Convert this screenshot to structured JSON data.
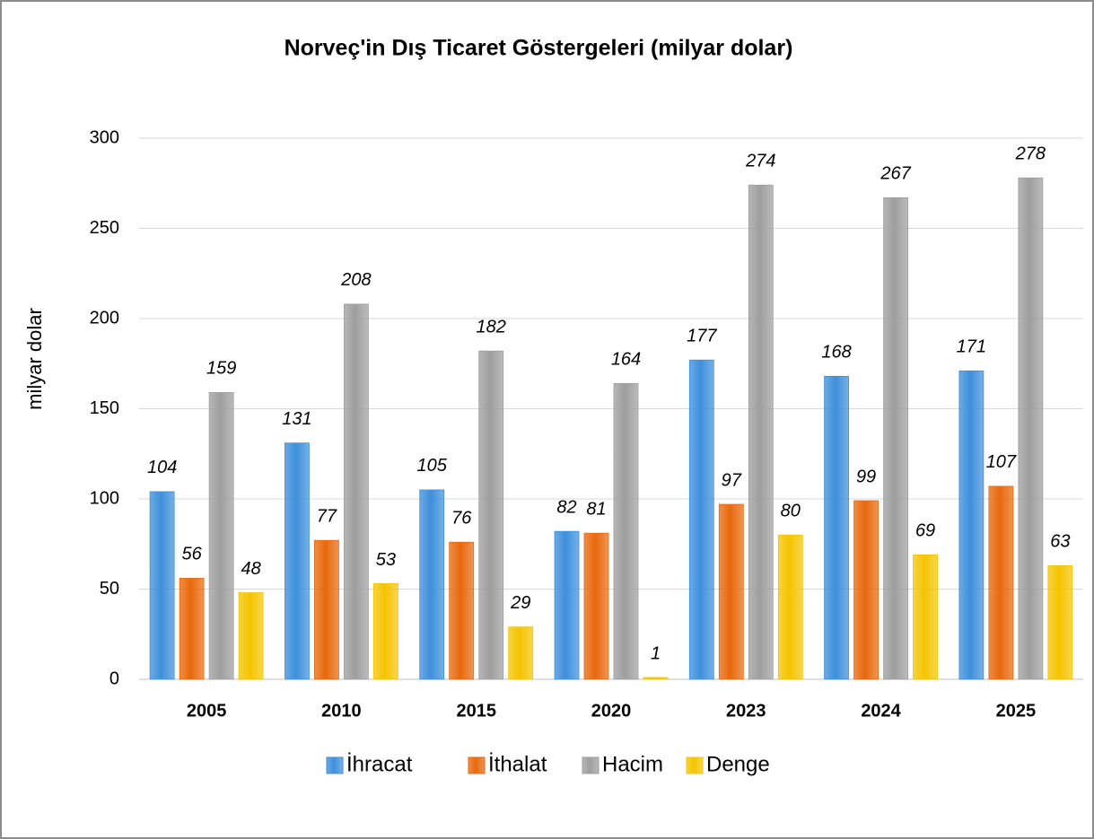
{
  "chart_data": {
    "type": "bar",
    "title": "Norveç'in Dış Ticaret Göstergeleri (milyar dolar)",
    "y_axis_label": "milyar dolar",
    "categories": [
      "2005",
      "2010",
      "2015",
      "2020",
      "2023",
      "2024",
      "2025"
    ],
    "series": [
      {
        "name": "İhracat",
        "color": "#3d8fdb",
        "values": [
          104,
          131,
          105,
          82,
          177,
          168,
          171
        ]
      },
      {
        "name": "İthalat",
        "color": "#e8680c",
        "values": [
          56,
          77,
          76,
          81,
          97,
          99,
          107
        ]
      },
      {
        "name": "Hacim",
        "color": "#9e9e9e",
        "values": [
          159,
          208,
          182,
          164,
          274,
          267,
          278
        ]
      },
      {
        "name": "Denge",
        "color": "#f5c400",
        "values": [
          48,
          53,
          29,
          1,
          80,
          69,
          63
        ]
      }
    ],
    "ylim": [
      0,
      300
    ],
    "yticks": [
      0,
      50,
      100,
      150,
      200,
      250,
      300
    ],
    "grid": true,
    "legend": "bottom"
  }
}
